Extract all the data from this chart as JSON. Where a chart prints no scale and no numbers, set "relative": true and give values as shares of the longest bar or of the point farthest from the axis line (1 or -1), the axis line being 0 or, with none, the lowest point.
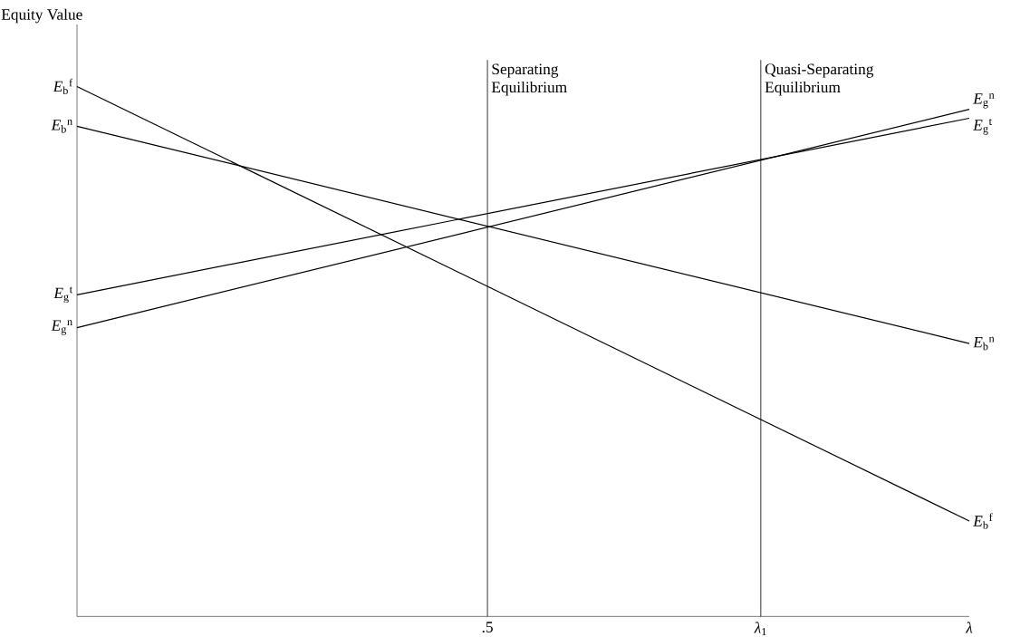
{
  "chart_data": {
    "type": "line",
    "relative": true,
    "ylabel": "Equity Value",
    "xlim": [
      0,
      1.087
    ],
    "xticks": [
      {
        "value": 0.5,
        "label": ".5"
      },
      {
        "value": 0.833,
        "label": "*λ*$_{1}$"
      },
      {
        "value": 1.087,
        "label": "*λ*"
      }
    ],
    "x": [
      0,
      1.087
    ],
    "series": [
      {
        "name": "*E*$_{b}$$^{f}$",
        "color": "#000000",
        "values": [
          1,
          0.18
        ]
      },
      {
        "name": "*E*$_{b}$$^{n}$",
        "color": "#000000",
        "values": [
          0.925,
          0.515
        ]
      },
      {
        "name": "*E*$_{g}$$^{t}$",
        "color": "#000000",
        "values": [
          0.607,
          0.94
        ]
      },
      {
        "name": "*E*$_{g}$$^{n}$",
        "color": "#000000",
        "values": [
          0.545,
          0.957
        ]
      }
    ],
    "ref_lines": [
      {
        "axis": "x",
        "value": 0.5,
        "label": "Separating Equilibrium"
      },
      {
        "axis": "x",
        "value": 0.833,
        "label": "Quasi-Separating Equilibrium"
      }
    ],
    "grid": false,
    "marker": "none",
    "line_style": "solid"
  }
}
